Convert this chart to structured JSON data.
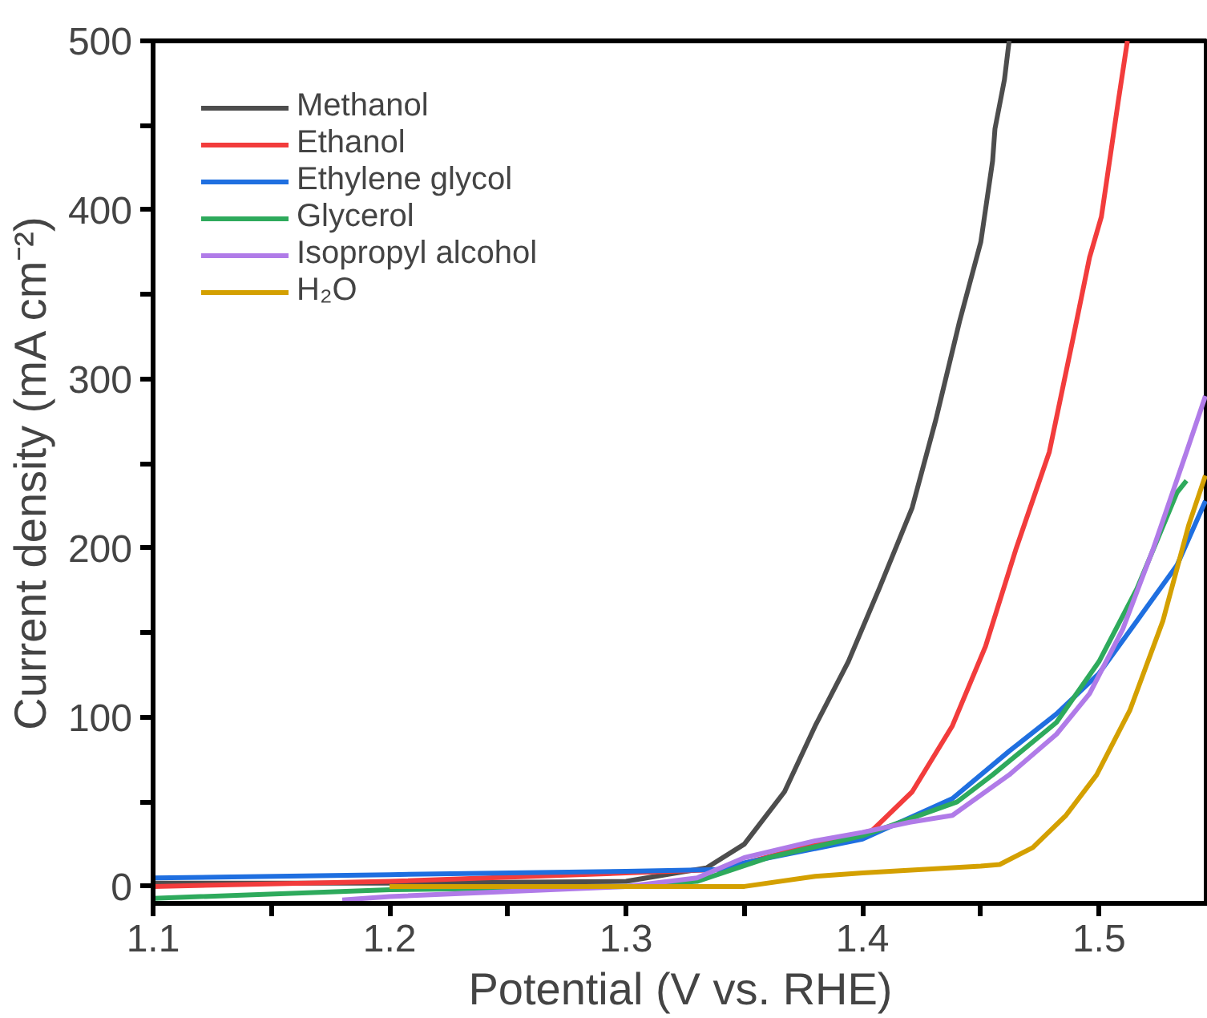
{
  "chart_data": {
    "type": "line",
    "xlabel": "Potential (V vs. RHE)",
    "ylabel": "Current density (mA cm⁻²)",
    "xlim": [
      1.1,
      1.546
    ],
    "ylim": [
      -10,
      500
    ],
    "xticks": [
      1.1,
      {
        "value": 1.15,
        "label": null
      },
      1.2,
      {
        "value": 1.25,
        "label": null
      },
      1.3,
      {
        "value": 1.35,
        "label": null
      },
      1.4,
      {
        "value": 1.45,
        "label": null
      },
      1.5
    ],
    "yticks": [
      0,
      {
        "value": 50,
        "label": null
      },
      100,
      {
        "value": 150,
        "label": null
      },
      200,
      {
        "value": 250,
        "label": null
      },
      300,
      {
        "value": 350,
        "label": null
      },
      400,
      {
        "value": 450,
        "label": null
      },
      500
    ],
    "grid": false,
    "legend": "top left",
    "line_style": "solid",
    "series": [
      {
        "name": "Methanol",
        "color": "#4d4d4d",
        "x": [
          1.1,
          1.2,
          1.3,
          1.334,
          1.35,
          1.367,
          1.38,
          1.394,
          1.407,
          1.421,
          1.431,
          1.441,
          1.45,
          1.455,
          1.456,
          1.46,
          1.462
        ],
        "values": [
          2,
          2,
          3,
          11,
          25,
          56,
          95,
          133,
          176,
          224,
          276,
          334,
          381,
          429,
          448,
          477,
          500
        ]
      },
      {
        "name": "Ethanol",
        "color": "#f23c3c",
        "x": [
          1.1,
          1.2,
          1.3,
          1.34,
          1.38,
          1.404,
          1.421,
          1.438,
          1.452,
          1.465,
          1.479,
          1.489,
          1.496,
          1.501,
          1.503,
          1.508,
          1.512
        ],
        "values": [
          0,
          3,
          8,
          10,
          25,
          33,
          56,
          95,
          142,
          200,
          257,
          324,
          372,
          396,
          415,
          463,
          500
        ]
      },
      {
        "name": "Ethylene glycol",
        "color": "#1f6fe0",
        "x": [
          1.1,
          1.2,
          1.3,
          1.34,
          1.35,
          1.4,
          1.438,
          1.462,
          1.482,
          1.5,
          1.516,
          1.533,
          1.545
        ],
        "values": [
          5,
          7,
          9,
          10,
          14,
          28,
          52,
          80,
          102,
          126,
          157,
          190,
          228
        ]
      },
      {
        "name": "Glycerol",
        "color": "#2eaa5c",
        "x": [
          1.1,
          1.2,
          1.3,
          1.33,
          1.36,
          1.4,
          1.44,
          1.455,
          1.482,
          1.5,
          1.516,
          1.533,
          1.537
        ],
        "values": [
          -7,
          -2,
          0,
          3,
          17,
          30,
          50,
          66,
          97,
          133,
          176,
          233,
          240
        ]
      },
      {
        "name": "Isopropyl alcohol",
        "color": "#b07be8",
        "x": [
          1.18,
          1.2,
          1.3,
          1.33,
          1.35,
          1.38,
          1.4,
          1.42,
          1.438,
          1.462,
          1.482,
          1.496,
          1.51,
          1.523,
          1.537,
          1.545
        ],
        "values": [
          -8,
          -6,
          0,
          5,
          17,
          27,
          32,
          38,
          42,
          66,
          90,
          114,
          152,
          200,
          257,
          290
        ]
      },
      {
        "name": "H₂O",
        "color": "#d4a000",
        "x": [
          1.2,
          1.3,
          1.35,
          1.38,
          1.4,
          1.45,
          1.458,
          1.472,
          1.486,
          1.499,
          1.513,
          1.527,
          1.538,
          1.545
        ],
        "values": [
          0,
          0,
          0,
          6,
          8,
          12,
          13,
          23,
          42,
          66,
          104,
          157,
          214,
          243
        ]
      }
    ]
  }
}
